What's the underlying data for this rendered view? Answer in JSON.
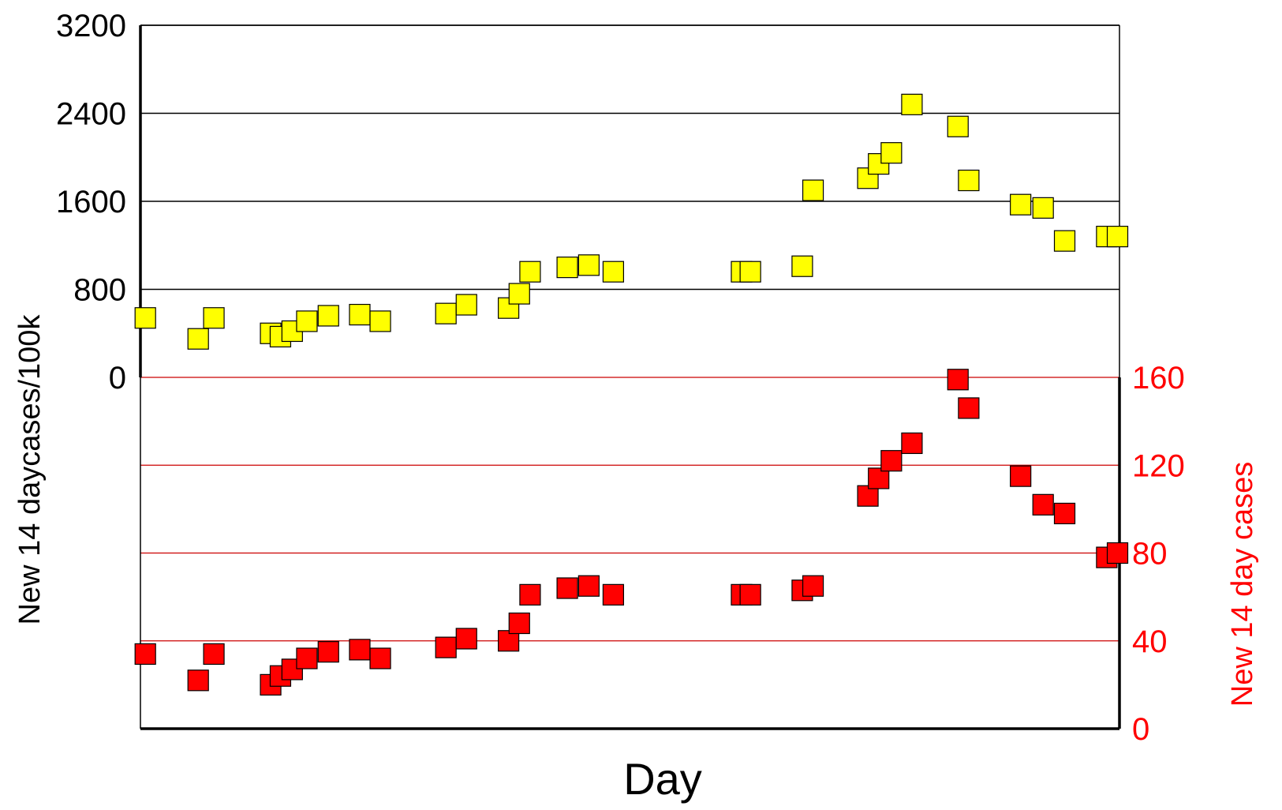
{
  "chart_data": {
    "type": "scatter",
    "title": "",
    "xlabel": "Day",
    "ylabel_left": "New 14 daycases/100k",
    "ylabel_right": "New  14 day cases",
    "ylim_left": [
      0,
      3200
    ],
    "yticks_left": [
      0,
      800,
      1600,
      2400,
      3200
    ],
    "ylim_right": [
      0,
      160
    ],
    "yticks_right": [
      0,
      40,
      80,
      120,
      160
    ],
    "grid": true,
    "legend": "none",
    "colors": {
      "series_left": "#ffff00",
      "series_right": "#ff0000",
      "right_axis": "#ff0000",
      "upper_grid": "#000000",
      "lower_grid": "#cc0000"
    },
    "series": [
      {
        "axis": "left",
        "marker": "square",
        "color": "#ffff00",
        "x": [
          0.5,
          5.9,
          7.5,
          13.3,
          14.3,
          15.5,
          17.0,
          19.2,
          22.4,
          24.5,
          31.2,
          33.3,
          37.6,
          38.7,
          39.8,
          43.6,
          45.8,
          48.3,
          61.4,
          62.3,
          67.6,
          68.7,
          74.3,
          75.4,
          76.7,
          78.8,
          83.5,
          84.6,
          89.9,
          92.2,
          94.4,
          98.7,
          99.8
        ],
        "values": [
          540,
          350,
          540,
          400,
          370,
          420,
          510,
          560,
          570,
          510,
          580,
          660,
          630,
          760,
          960,
          1000,
          1020,
          960,
          960,
          960,
          1010,
          1700,
          1810,
          1940,
          2040,
          2480,
          2280,
          1790,
          1570,
          1540,
          1240,
          1280,
          1280
        ]
      },
      {
        "axis": "right",
        "marker": "square",
        "color": "#ff0000",
        "x": [
          0.5,
          5.9,
          7.5,
          13.3,
          14.3,
          15.5,
          17.0,
          19.2,
          22.4,
          24.5,
          31.2,
          33.3,
          37.6,
          38.7,
          39.8,
          43.6,
          45.8,
          48.3,
          61.4,
          62.3,
          67.6,
          68.7,
          74.3,
          75.4,
          76.7,
          78.8,
          83.5,
          84.6,
          89.9,
          92.2,
          94.4,
          98.7,
          99.8
        ],
        "values": [
          34,
          22,
          34,
          20,
          24,
          27,
          32,
          35,
          36,
          32,
          37,
          41,
          40,
          48,
          61,
          64,
          65,
          61,
          61,
          61,
          63,
          65,
          106,
          114,
          122,
          130,
          159,
          146,
          115,
          102,
          98,
          78,
          80
        ]
      }
    ]
  }
}
